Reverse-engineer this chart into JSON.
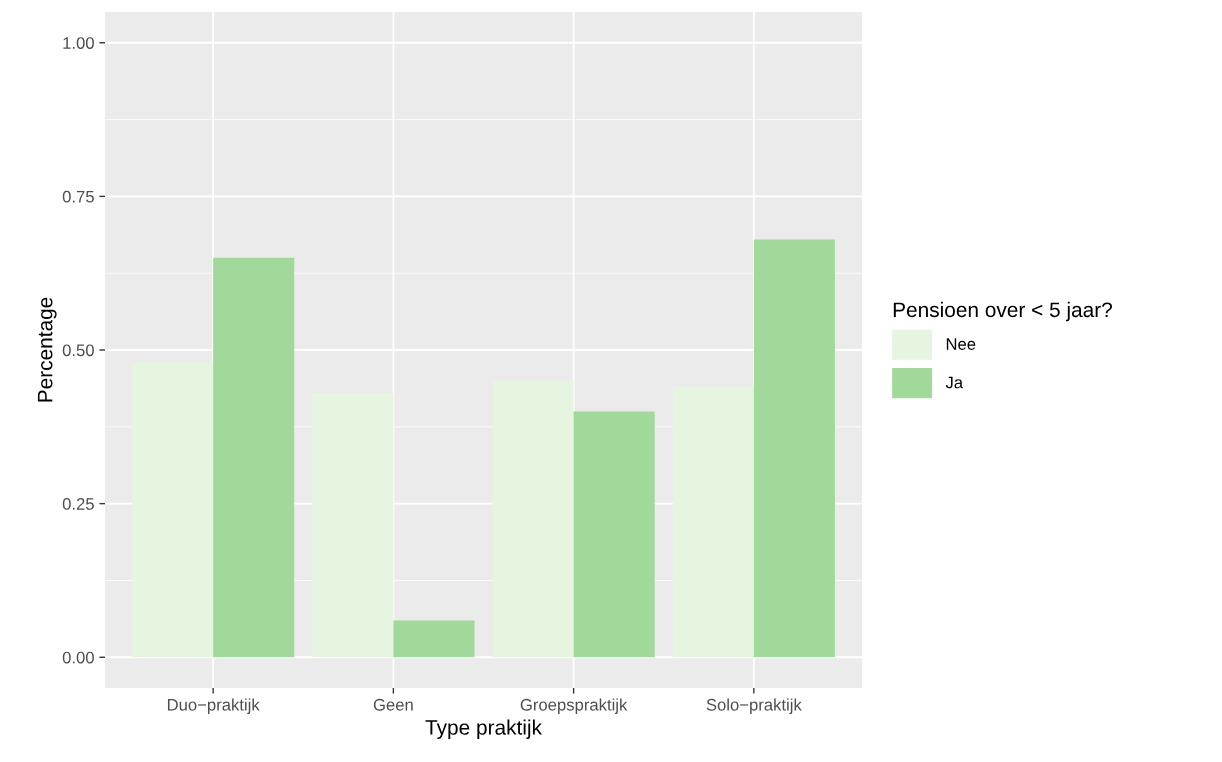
{
  "chart_data": {
    "type": "bar",
    "xlabel": "Type praktijk",
    "ylabel": "Percentage",
    "legend_title": "Pensioen over < 5 jaar?",
    "categories": [
      "Duo−praktijk",
      "Geen",
      "Groepspraktijk",
      "Solo−praktijk"
    ],
    "series": [
      {
        "name": "Nee",
        "color": "#e5f5e0",
        "values": [
          0.48,
          0.43,
          0.45,
          0.44
        ]
      },
      {
        "name": "Ja",
        "color": "#a1d99b",
        "values": [
          0.65,
          0.06,
          0.4,
          0.68
        ]
      }
    ],
    "ylim": [
      -0.05,
      1.05
    ],
    "yticks": [
      {
        "value": 0,
        "label": "0.00"
      },
      {
        "value": 0.25,
        "label": "0.25"
      },
      {
        "value": 0.5,
        "label": "0.50"
      },
      {
        "value": 0.75,
        "label": "0.75"
      },
      {
        "value": 1,
        "label": "1.00"
      }
    ],
    "grid": true,
    "legend": "right"
  }
}
